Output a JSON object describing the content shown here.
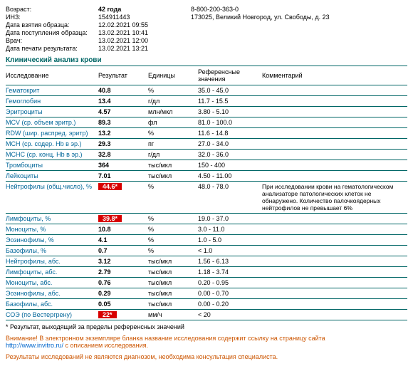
{
  "header": {
    "age_label": "Возраст:",
    "age_value": "42 года",
    "inz_label": "ИНЗ:",
    "inz_value": "154911443",
    "sample_date_label": "Дата взятия образца:",
    "sample_date_value": "12.02.2021 09:55",
    "arrival_date_label": "Дата поступления образца:",
    "arrival_date_value": "13.02.2021 10:41",
    "doctor_label": "Врач:",
    "doctor_value": "13.02.2021 12:00",
    "print_date_label": "Дата печати результата:",
    "print_date_value": "13.02.2021 13:21",
    "phone": "8-800-200-363-0",
    "address": "173025, Великий Новгород, ул. Свободы, д. 23"
  },
  "section_title": "Клинический анализ крови",
  "columns": {
    "test": "Исследование",
    "result": "Результат",
    "units": "Единицы",
    "ref": "Референсные значения",
    "comment": "Комментарий"
  },
  "rows": [
    {
      "test": "Гематокрит",
      "result": "40.8",
      "units": "%",
      "ref": "35.0 - 45.0",
      "comment": "",
      "flag": false
    },
    {
      "test": "Гемоглобин",
      "result": "13.4",
      "units": "г/дл",
      "ref": "11.7 - 15.5",
      "comment": "",
      "flag": false
    },
    {
      "test": "Эритроциты",
      "result": "4.57",
      "units": "млн/мкл",
      "ref": "3.80 - 5.10",
      "comment": "",
      "flag": false
    },
    {
      "test": "MCV (ср. объем эритр.)",
      "result": "89.3",
      "units": "фл",
      "ref": "81.0 - 100.0",
      "comment": "",
      "flag": false
    },
    {
      "test": "RDW (шир. распред. эритр)",
      "result": "13.2",
      "units": "%",
      "ref": "11.6 - 14.8",
      "comment": "",
      "flag": false
    },
    {
      "test": "MCH (ср. содер. Hb в эр.)",
      "result": "29.3",
      "units": "пг",
      "ref": "27.0 - 34.0",
      "comment": "",
      "flag": false
    },
    {
      "test": "MCHC (ср. конц. Hb в эр.)",
      "result": "32.8",
      "units": "г/дл",
      "ref": "32.0 - 36.0",
      "comment": "",
      "flag": false
    },
    {
      "test": "Тромбоциты",
      "result": "364",
      "units": "тыс/мкл",
      "ref": "150 - 400",
      "comment": "",
      "flag": false
    },
    {
      "test": "Лейкоциты",
      "result": "7.01",
      "units": "тыс/мкл",
      "ref": "4.50 - 11.00",
      "comment": "",
      "flag": false
    },
    {
      "test": "Нейтрофилы (общ.число), %",
      "result": "44.6*",
      "units": "%",
      "ref": "48.0 - 78.0",
      "comment": "При исследовании крови на гематологическом анализаторе патологических клеток не обнаружено. Количество палочкоядерных нейтрофилов не превышает 6%",
      "flag": true
    },
    {
      "test": "Лимфоциты, %",
      "result": "39.8*",
      "units": "%",
      "ref": "19.0 - 37.0",
      "comment": "",
      "flag": true
    },
    {
      "test": "Моноциты, %",
      "result": "10.8",
      "units": "%",
      "ref": "3.0 - 11.0",
      "comment": "",
      "flag": false
    },
    {
      "test": "Эозинофилы, %",
      "result": "4.1",
      "units": "%",
      "ref": "1.0 - 5.0",
      "comment": "",
      "flag": false
    },
    {
      "test": "Базофилы, %",
      "result": "0.7",
      "units": "%",
      "ref": "< 1.0",
      "comment": "",
      "flag": false
    },
    {
      "test": "Нейтрофилы, абс.",
      "result": "3.12",
      "units": "тыс/мкл",
      "ref": "1.56 - 6.13",
      "comment": "",
      "flag": false
    },
    {
      "test": "Лимфоциты, абс.",
      "result": "2.79",
      "units": "тыс/мкл",
      "ref": "1.18 - 3.74",
      "comment": "",
      "flag": false
    },
    {
      "test": "Моноциты, абс.",
      "result": "0.76",
      "units": "тыс/мкл",
      "ref": "0.20 - 0.95",
      "comment": "",
      "flag": false
    },
    {
      "test": "Эозинофилы, абс.",
      "result": "0.29",
      "units": "тыс/мкл",
      "ref": "0.00 - 0.70",
      "comment": "",
      "flag": false
    },
    {
      "test": "Базофилы, абс.",
      "result": "0.05",
      "units": "тыс/мкл",
      "ref": "0.00 - 0.20",
      "comment": "",
      "flag": false
    },
    {
      "test": "СОЭ (по Вестергрену)",
      "result": "22*",
      "units": "мм/ч",
      "ref": "< 20",
      "comment": "",
      "flag": true
    }
  ],
  "footnote": "* Результат, выходящий за пределы референсных значений",
  "warning_prefix": "Внимание!",
  "warning_text": " В электронном экземпляре бланка название исследования содержит ссылку на страницу сайта ",
  "warning_link": "http://www.invitro.ru/",
  "warning_suffix": "с описанием исследования.",
  "disclaimer": "Результаты исследований не являются диагнозом, необходима консультация специалиста."
}
